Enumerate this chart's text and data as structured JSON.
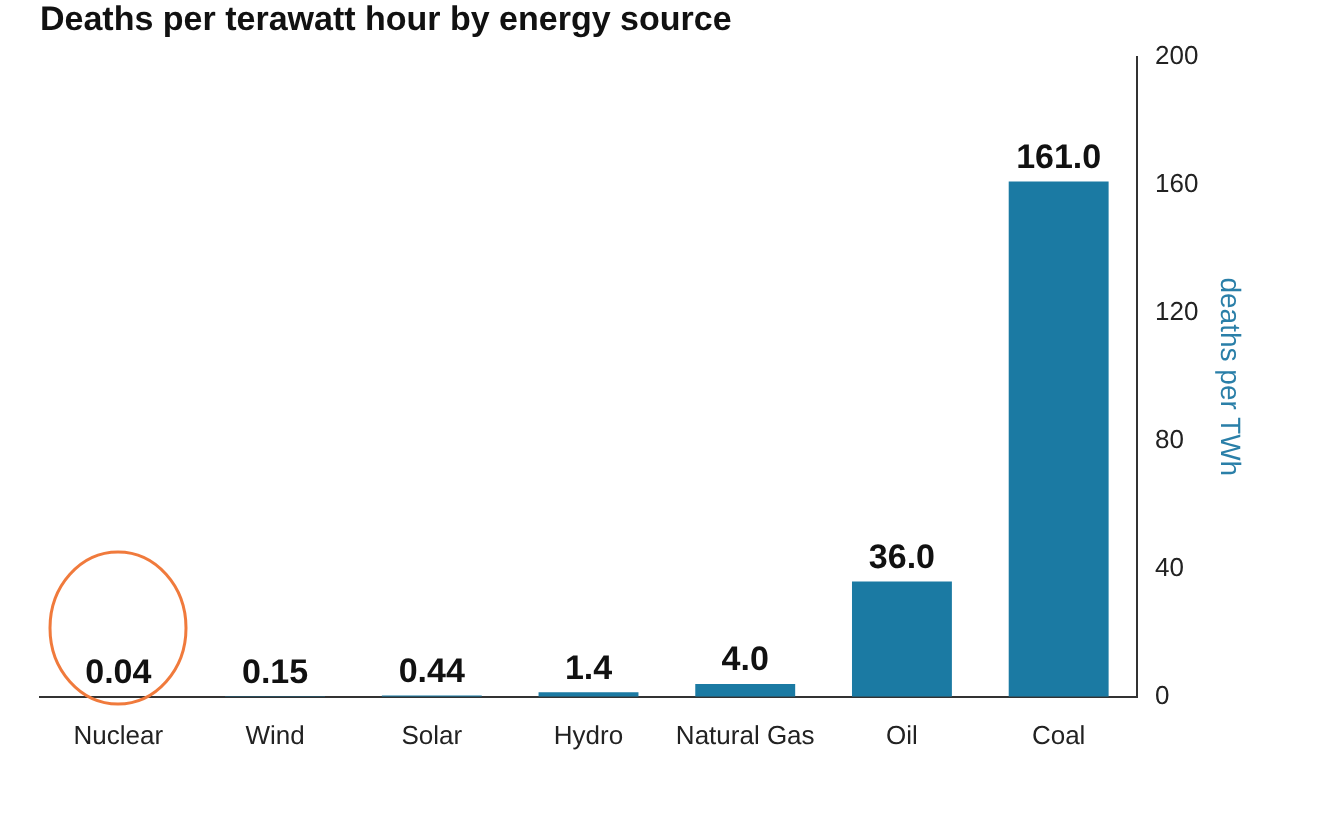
{
  "chart_data": {
    "type": "bar",
    "title": "Deaths per terawatt hour by energy source",
    "ylabel": "deaths per TWh",
    "categories": [
      "Nuclear",
      "Wind",
      "Solar",
      "Hydro",
      "Natural Gas",
      "Oil",
      "Coal"
    ],
    "values": [
      0.04,
      0.15,
      0.44,
      1.4,
      4.0,
      36.0,
      161.0
    ],
    "value_labels": [
      "0.04",
      "0.15",
      "0.44",
      "1.4",
      "4.0",
      "36.0",
      "161.0"
    ],
    "color": "#1b7aa3",
    "ylim": [
      0,
      200
    ],
    "yticks": [
      0,
      40,
      80,
      120,
      160,
      200
    ],
    "grid": false,
    "legend": false
  }
}
